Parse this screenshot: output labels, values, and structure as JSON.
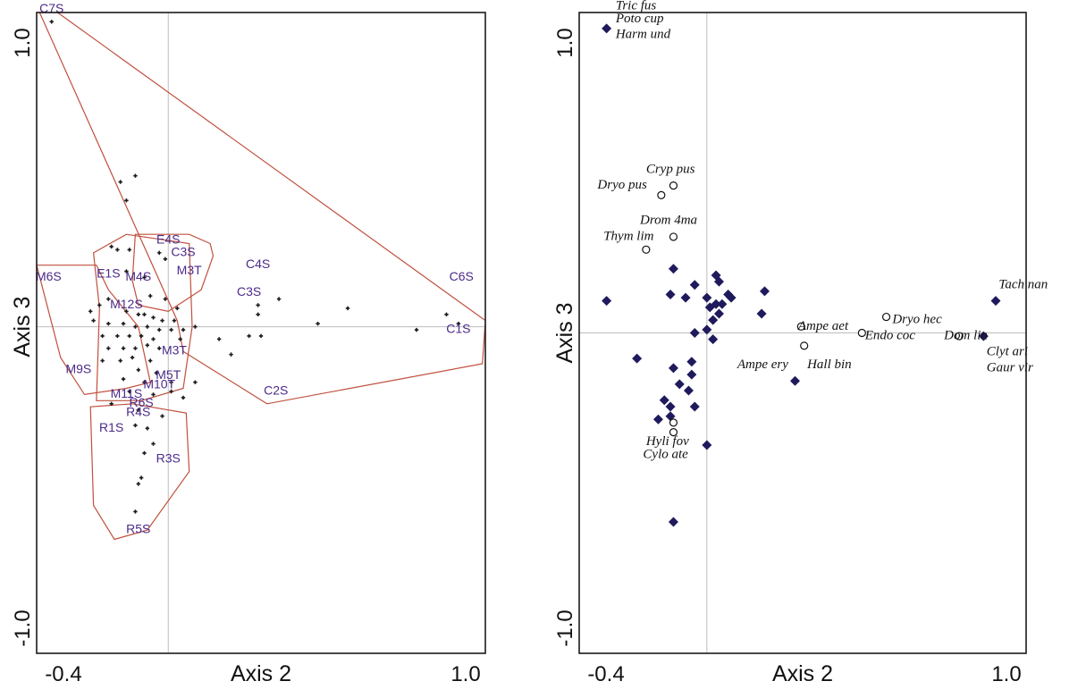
{
  "chart_data": [
    {
      "type": "scatter",
      "xlabel": "Axis 2",
      "ylabel": "Axis 3",
      "x_tick_labels": [
        "-0.4",
        "1.0"
      ],
      "y_tick_labels": [
        "1.0",
        "-1.0"
      ],
      "xlim": [
        -0.44,
        1.06
      ],
      "ylim": [
        -1.06,
        1.02
      ],
      "reference_lines": {
        "x": 0,
        "y": 0
      },
      "hull_color": "#c0503e",
      "label_color": "#4b2a8a",
      "groups": [
        {
          "points": [
            [
              -0.43,
              1.02
            ],
            [
              -0.37,
              1.02
            ],
            [
              1.06,
              0.02
            ],
            [
              1.05,
              -0.12
            ],
            [
              0.33,
              -0.25
            ],
            [
              0.05,
              -0.08
            ],
            [
              0.03,
              0.02
            ]
          ]
        },
        {
          "points": [
            [
              -0.11,
              0.3
            ],
            [
              0.07,
              0.3
            ],
            [
              0.14,
              0.27
            ],
            [
              0.15,
              0.23
            ],
            [
              0.11,
              0.12
            ],
            [
              0.0,
              0.05
            ],
            [
              -0.1,
              0.07
            ],
            [
              -0.12,
              0.15
            ]
          ]
        },
        {
          "points": [
            [
              -0.44,
              0.2
            ],
            [
              -0.24,
              0.2
            ],
            [
              -0.2,
              0.12
            ],
            [
              -0.1,
              0.0
            ],
            [
              -0.06,
              -0.18
            ],
            [
              -0.14,
              -0.2
            ],
            [
              -0.28,
              -0.22
            ],
            [
              -0.36,
              -0.1
            ]
          ]
        },
        {
          "points": [
            [
              -0.25,
              0.24
            ],
            [
              -0.14,
              0.3
            ],
            [
              0.07,
              0.27
            ],
            [
              0.08,
              0.0
            ],
            [
              0.05,
              -0.2
            ],
            [
              -0.09,
              -0.24
            ],
            [
              -0.24,
              -0.24
            ],
            [
              -0.23,
              0.06
            ]
          ]
        },
        {
          "points": [
            [
              -0.26,
              -0.26
            ],
            [
              -0.12,
              -0.25
            ],
            [
              0.06,
              -0.28
            ],
            [
              0.07,
              -0.47
            ],
            [
              -0.07,
              -0.66
            ],
            [
              -0.18,
              -0.69
            ],
            [
              -0.25,
              -0.58
            ]
          ]
        }
      ],
      "sites": [
        {
          "label": "C7S",
          "x": -0.39,
          "y": 1.02
        },
        {
          "label": "C6S",
          "x": 0.98,
          "y": 0.15
        },
        {
          "label": "C4S",
          "x": 0.3,
          "y": 0.19
        },
        {
          "label": "C3S",
          "x": 0.27,
          "y": 0.1
        },
        {
          "label": "C1S",
          "x": 0.97,
          "y": -0.02
        },
        {
          "label": "C2S",
          "x": 0.36,
          "y": -0.22
        },
        {
          "label": "E4S",
          "x": 0.0,
          "y": 0.27
        },
        {
          "label": "C3S",
          "x": 0.05,
          "y": 0.23
        },
        {
          "label": "M6S",
          "x": -0.4,
          "y": 0.15
        },
        {
          "label": "E1S",
          "x": -0.2,
          "y": 0.16
        },
        {
          "label": "M4S",
          "x": -0.1,
          "y": 0.15
        },
        {
          "label": "M3T",
          "x": 0.07,
          "y": 0.17
        },
        {
          "label": "M12S",
          "x": -0.14,
          "y": 0.06
        },
        {
          "label": "M9S",
          "x": -0.3,
          "y": -0.15
        },
        {
          "label": "M3T",
          "x": 0.02,
          "y": -0.09
        },
        {
          "label": "M5T",
          "x": -0.0,
          "y": -0.17
        },
        {
          "label": "M10T",
          "x": -0.03,
          "y": -0.2
        },
        {
          "label": "M11S",
          "x": -0.14,
          "y": -0.23
        },
        {
          "label": "R6S",
          "x": -0.09,
          "y": -0.26
        },
        {
          "label": "R4S",
          "x": -0.1,
          "y": -0.29
        },
        {
          "label": "R1S",
          "x": -0.19,
          "y": -0.34
        },
        {
          "label": "R3S",
          "x": 0.0,
          "y": -0.44
        },
        {
          "label": "R5S",
          "x": -0.1,
          "y": -0.67
        }
      ],
      "points": [
        [
          -0.39,
          0.99
        ],
        [
          -0.16,
          0.47
        ],
        [
          -0.11,
          0.49
        ],
        [
          -0.14,
          0.41
        ],
        [
          -0.19,
          0.26
        ],
        [
          -0.17,
          0.25
        ],
        [
          -0.13,
          0.25
        ],
        [
          -0.03,
          0.24
        ],
        [
          -0.01,
          0.22
        ],
        [
          -0.14,
          0.18
        ],
        [
          -0.08,
          0.16
        ],
        [
          -0.06,
          0.1
        ],
        [
          -0.01,
          0.09
        ],
        [
          0.03,
          0.06
        ],
        [
          -0.2,
          0.09
        ],
        [
          -0.23,
          0.07
        ],
        [
          -0.26,
          0.05
        ],
        [
          -0.14,
          0.05
        ],
        [
          -0.1,
          0.04
        ],
        [
          -0.08,
          0.04
        ],
        [
          -0.05,
          0.03
        ],
        [
          -0.02,
          0.02
        ],
        [
          0.02,
          0.02
        ],
        [
          -0.25,
          0.02
        ],
        [
          -0.2,
          0.01
        ],
        [
          -0.15,
          0.01
        ],
        [
          -0.11,
          0.0
        ],
        [
          -0.07,
          0.0
        ],
        [
          -0.03,
          -0.01
        ],
        [
          0.01,
          -0.01
        ],
        [
          0.05,
          -0.01
        ],
        [
          0.09,
          0.0
        ],
        [
          -0.22,
          -0.03
        ],
        [
          -0.17,
          -0.03
        ],
        [
          -0.13,
          -0.03
        ],
        [
          -0.09,
          -0.03
        ],
        [
          -0.05,
          -0.04
        ],
        [
          0.04,
          -0.04
        ],
        [
          -0.2,
          -0.07
        ],
        [
          -0.15,
          -0.07
        ],
        [
          -0.11,
          -0.07
        ],
        [
          -0.07,
          -0.06
        ],
        [
          -0.03,
          -0.07
        ],
        [
          -0.22,
          -0.11
        ],
        [
          -0.16,
          -0.11
        ],
        [
          -0.12,
          -0.1
        ],
        [
          -0.06,
          -0.11
        ],
        [
          -0.1,
          -0.14
        ],
        [
          -0.04,
          -0.15
        ],
        [
          -0.15,
          -0.17
        ],
        [
          -0.08,
          -0.18
        ],
        [
          0.01,
          -0.18
        ],
        [
          0.09,
          -0.18
        ],
        [
          -0.13,
          -0.21
        ],
        [
          -0.05,
          -0.22
        ],
        [
          0.05,
          -0.23
        ],
        [
          -0.19,
          -0.25
        ],
        [
          -0.1,
          -0.27
        ],
        [
          -0.02,
          -0.29
        ],
        [
          -0.11,
          -0.32
        ],
        [
          -0.07,
          -0.33
        ],
        [
          -0.05,
          -0.38
        ],
        [
          -0.08,
          -0.41
        ],
        [
          -0.09,
          -0.49
        ],
        [
          -0.1,
          -0.51
        ],
        [
          -0.11,
          -0.6
        ],
        [
          0.01,
          -0.21
        ],
        [
          0.17,
          -0.04
        ],
        [
          0.21,
          -0.09
        ],
        [
          0.27,
          -0.03
        ],
        [
          0.3,
          0.04
        ],
        [
          0.3,
          0.07
        ],
        [
          0.31,
          -0.03
        ],
        [
          0.37,
          0.09
        ],
        [
          0.5,
          0.01
        ],
        [
          0.6,
          0.06
        ],
        [
          0.83,
          -0.01
        ],
        [
          0.93,
          0.04
        ],
        [
          0.97,
          0.01
        ]
      ]
    },
    {
      "type": "scatter",
      "xlabel": "Axis 2",
      "ylabel": "Axis 3",
      "x_tick_labels": [
        "-0.4",
        "1.0"
      ],
      "y_tick_labels": [
        "1.0",
        "-1.0"
      ],
      "xlim": [
        -0.42,
        1.05
      ],
      "ylim": [
        -1.0,
        1.0
      ],
      "reference_lines": {
        "x": 0,
        "y": 0
      },
      "series": [
        {
          "marker": "diamond",
          "color": "#1f1a5c",
          "points": [
            [
              -0.33,
              0.95
            ],
            [
              -0.33,
              0.1
            ],
            [
              0.95,
              0.1
            ],
            [
              -0.23,
              -0.08
            ],
            [
              -0.12,
              -0.23
            ],
            [
              -0.11,
              -0.11
            ],
            [
              -0.09,
              -0.16
            ],
            [
              -0.04,
              -0.23
            ],
            [
              -0.14,
              -0.21
            ],
            [
              -0.12,
              -0.26
            ],
            [
              -0.16,
              -0.27
            ],
            [
              -0.06,
              -0.18
            ],
            [
              -0.12,
              0.12
            ],
            [
              -0.07,
              0.11
            ],
            [
              -0.04,
              0.15
            ],
            [
              -0.11,
              0.2
            ],
            [
              0.03,
              0.18
            ],
            [
              0.04,
              0.16
            ],
            [
              0.07,
              0.12
            ],
            [
              0.08,
              0.11
            ],
            [
              0.0,
              0.11
            ],
            [
              0.01,
              0.08
            ],
            [
              0.03,
              0.09
            ],
            [
              0.05,
              0.09
            ],
            [
              0.04,
              0.06
            ],
            [
              0.02,
              0.04
            ],
            [
              -0.04,
              0.0
            ],
            [
              0.0,
              0.01
            ],
            [
              0.02,
              -0.02
            ],
            [
              -0.05,
              -0.09
            ],
            [
              -0.05,
              -0.13
            ],
            [
              0.19,
              0.13
            ],
            [
              0.18,
              0.06
            ],
            [
              0.29,
              -0.15
            ],
            [
              0.0,
              -0.35
            ],
            [
              -0.11,
              -0.59
            ],
            [
              0.91,
              -0.01
            ]
          ]
        },
        {
          "marker": "circle",
          "color": "#111111",
          "points": [
            [
              -0.11,
              0.46
            ],
            [
              -0.15,
              0.43
            ],
            [
              -0.11,
              0.3
            ],
            [
              -0.2,
              0.26
            ],
            [
              0.31,
              0.02
            ],
            [
              0.32,
              -0.04
            ],
            [
              0.51,
              0.0
            ],
            [
              0.59,
              0.05
            ],
            [
              0.83,
              -0.01
            ],
            [
              -0.11,
              -0.28
            ],
            [
              -0.11,
              -0.31
            ]
          ]
        }
      ],
      "species_labels": [
        {
          "text": "Tric fus",
          "x": -0.3,
          "y": 1.01
        },
        {
          "text": "Poto cup",
          "x": -0.3,
          "y": 0.97
        },
        {
          "text": "Harm und",
          "x": -0.3,
          "y": 0.92
        },
        {
          "text": "Cryp pus",
          "x": -0.2,
          "y": 0.5
        },
        {
          "text": "Dryo pus",
          "x": -0.36,
          "y": 0.45
        },
        {
          "text": "Drom 4ma",
          "x": -0.22,
          "y": 0.34
        },
        {
          "text": "Thym lim",
          "x": -0.34,
          "y": 0.29
        },
        {
          "text": "Tach nan",
          "x": 0.96,
          "y": 0.14
        },
        {
          "text": "Ampe aet",
          "x": 0.3,
          "y": 0.01
        },
        {
          "text": "Dryo hec",
          "x": 0.61,
          "y": 0.03
        },
        {
          "text": "Endo coc",
          "x": 0.52,
          "y": -0.02
        },
        {
          "text": "Dom lin",
          "x": 0.78,
          "y": -0.02
        },
        {
          "text": "Clyt ari",
          "x": 0.92,
          "y": -0.07
        },
        {
          "text": "Gaur vir",
          "x": 0.92,
          "y": -0.12
        },
        {
          "text": "Ampe ery",
          "x": 0.1,
          "y": -0.11
        },
        {
          "text": "Hall bin",
          "x": 0.33,
          "y": -0.11
        },
        {
          "text": "Hyli fov",
          "x": -0.2,
          "y": -0.35
        },
        {
          "text": "Cylo ate",
          "x": -0.21,
          "y": -0.39
        }
      ]
    }
  ]
}
